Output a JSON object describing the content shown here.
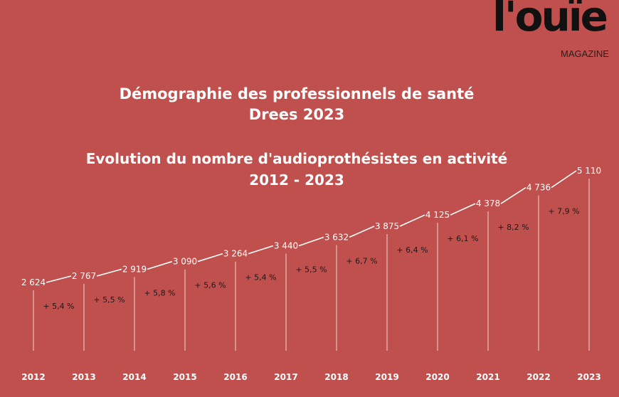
{
  "logo": {
    "word": "l'ouïe",
    "sub": "MAGAZINE"
  },
  "titles": {
    "line1": "Démographie des professionnels de santé",
    "line2": "Drees 2023",
    "line3": "Evolution du nombre d'audioprothésistes en activité",
    "line4": "2012 - 2023"
  },
  "colors": {
    "background": "#c0504d",
    "line": "#ffffff",
    "text_dark": "#1a1a1a"
  },
  "chart_data": {
    "type": "line",
    "x": [
      "2012",
      "2013",
      "2014",
      "2015",
      "2016",
      "2017",
      "2018",
      "2019",
      "2020",
      "2021",
      "2022",
      "2023"
    ],
    "values": [
      2624,
      2767,
      2919,
      3090,
      3264,
      3440,
      3632,
      3875,
      4125,
      4378,
      4736,
      5110
    ],
    "value_labels": [
      "2 624",
      "2 767",
      "2 919",
      "3 090",
      "3 264",
      "3 440",
      "3 632",
      "3 875",
      "4 125",
      "4 378",
      "4 736",
      "5 110"
    ],
    "growth_labels": [
      "+ 5,4 %",
      "+ 5,5 %",
      "+ 5,8 %",
      "+ 5,6 %",
      "+ 5,4 %",
      "+ 5,5 %",
      "+ 6,7 %",
      "+ 6,4 %",
      "+ 6,1 %",
      "+ 8,2 %",
      "+ 7,9 %"
    ],
    "grid": false,
    "drop_lines": true
  }
}
